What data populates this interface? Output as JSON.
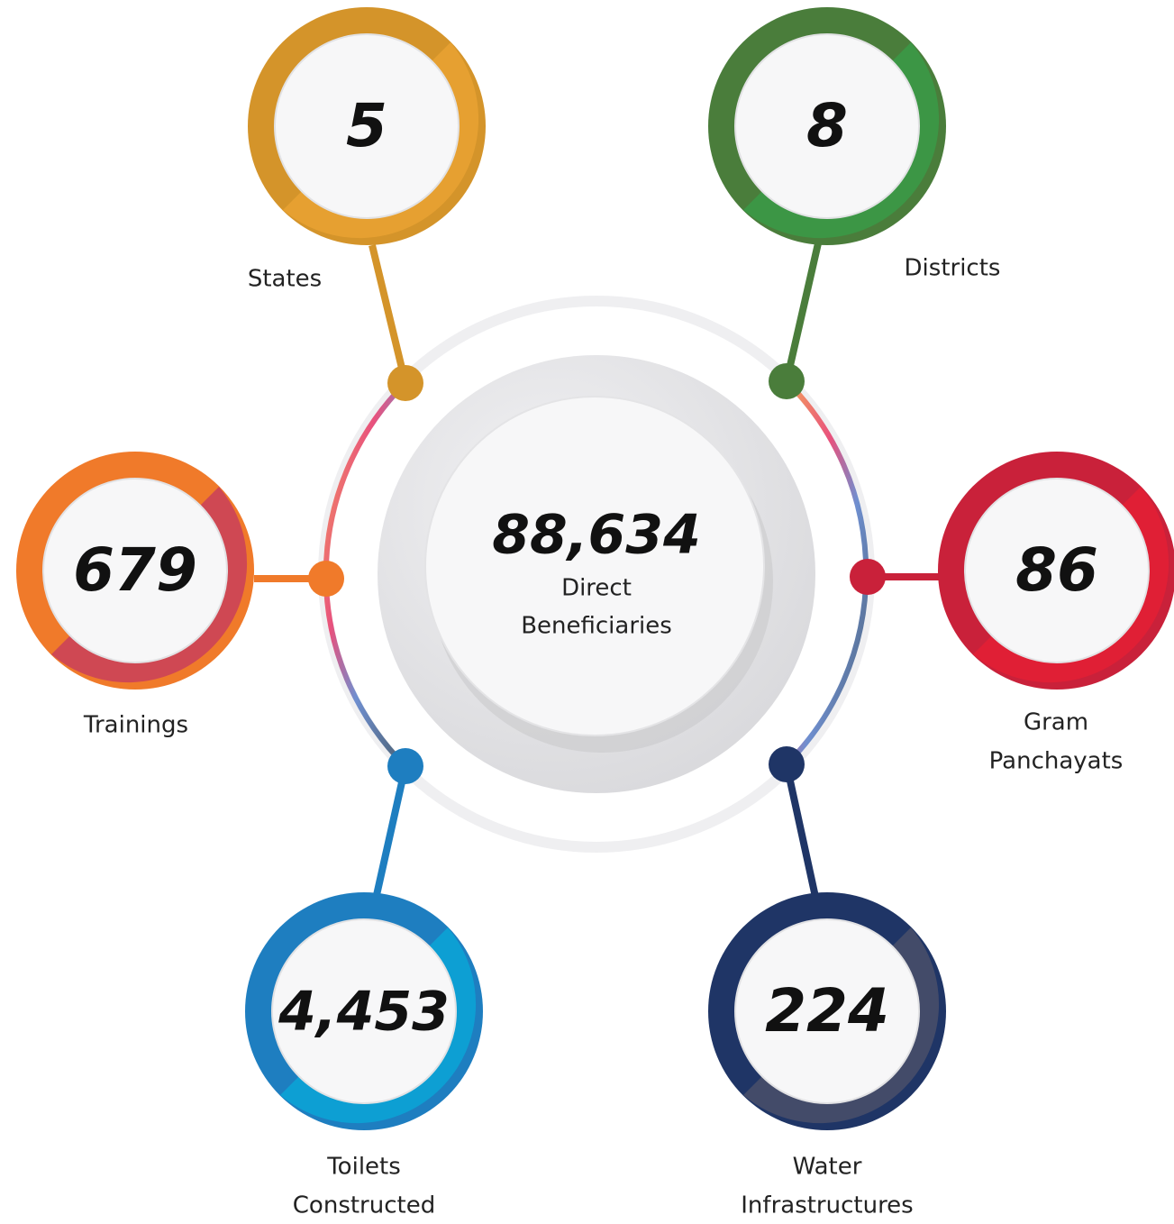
{
  "center": {
    "value": "88,634",
    "label": [
      "Direct",
      "Beneficiaries"
    ]
  },
  "nodes": [
    {
      "value": "5",
      "label": [
        "States"
      ]
    },
    {
      "value": "8",
      "label": [
        "Districts"
      ]
    },
    {
      "value": "679",
      "label": [
        "Trainings"
      ]
    },
    {
      "value": "86",
      "label": [
        "Gram",
        "Panchayats"
      ]
    },
    {
      "value": "4,453",
      "label": [
        "Toilets",
        "Constructed"
      ]
    },
    {
      "value": "224",
      "label": [
        "Water",
        "Infrastructures"
      ]
    }
  ]
}
